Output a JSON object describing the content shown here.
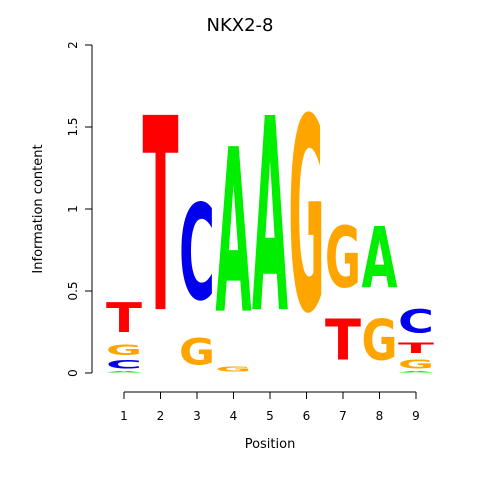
{
  "chart_data": {
    "type": "sequence-logo",
    "title": "NKX2-8",
    "xlabel": "Position",
    "ylabel": "Information content",
    "ylim": [
      0,
      2
    ],
    "yticks": [
      "0",
      "0.5",
      "1",
      "1.5",
      "2"
    ],
    "positions": [
      "1",
      "2",
      "3",
      "4",
      "5",
      "6",
      "7",
      "8",
      "9"
    ],
    "colors": {
      "A": "#00ee00",
      "C": "#0000ee",
      "G": "#ffa500",
      "T": "#ff0000"
    },
    "stacks": [
      [
        {
          "base": "A",
          "value": 0.01
        },
        {
          "base": "C",
          "value": 0.08
        },
        {
          "base": "G",
          "value": 0.1
        },
        {
          "base": "T",
          "value": 0.29
        }
      ],
      [
        {
          "base": "T",
          "value": 1.9
        }
      ],
      [
        {
          "base": "G",
          "value": 0.26
        },
        {
          "base": "C",
          "value": 0.94
        }
      ],
      [
        {
          "base": "G",
          "value": 0.05
        },
        {
          "base": "A",
          "value": 1.61
        }
      ],
      [
        {
          "base": "A",
          "value": 1.9
        }
      ],
      [
        {
          "base": "G",
          "value": 1.9
        }
      ],
      [
        {
          "base": "T",
          "value": 0.4
        },
        {
          "base": "G",
          "value": 0.6
        }
      ],
      [
        {
          "base": "G",
          "value": 0.4
        },
        {
          "base": "A",
          "value": 0.6
        }
      ],
      [
        {
          "base": "A",
          "value": 0.01
        },
        {
          "base": "G",
          "value": 0.09
        },
        {
          "base": "T",
          "value": 0.1
        },
        {
          "base": "C",
          "value": 0.23
        }
      ]
    ]
  }
}
